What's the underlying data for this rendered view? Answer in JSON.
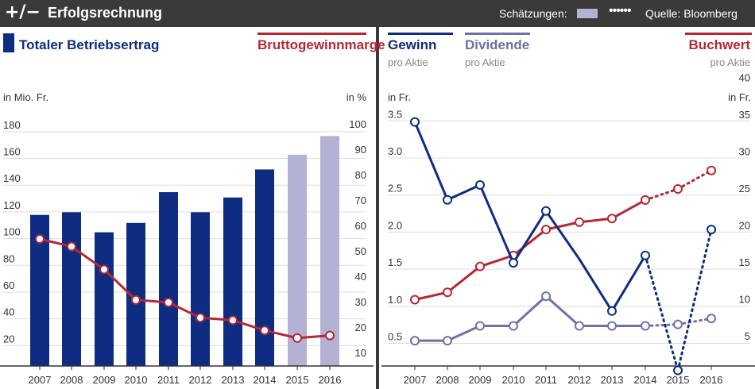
{
  "header": {
    "logo": "+/−",
    "title": "Erfolgsrechnung",
    "estimates_label": "Schätzungen:",
    "estimates_dots": "••••••",
    "source": "Quelle: Bloomberg"
  },
  "colors": {
    "bar": "#0f2c83",
    "bar_estimate": "#b4b2d4",
    "margin_line": "#b62732",
    "eps_line": "#0f2c83",
    "dividend_line": "#6e71aa",
    "book_line": "#b62732"
  },
  "legend": {
    "revenue": "Totaler Betriebsertrag",
    "margin": "Bruttogewinnmarge",
    "eps": "Gewinn",
    "eps_sub": "pro Aktie",
    "dividend": "Dividende",
    "dividend_sub": "pro Aktie",
    "book": "Buchwert",
    "book_sub": "pro Aktie"
  },
  "chart_data": [
    {
      "type": "bar",
      "title": "Totaler Betriebsertrag / Bruttogewinnmarge",
      "categories": [
        "2007",
        "2008",
        "2009",
        "2010",
        "2011",
        "2012",
        "2013",
        "2014",
        "2015",
        "2016"
      ],
      "ylabel": "in Mio. Fr.",
      "y2label": "in %",
      "ylim": [
        0,
        190
      ],
      "yticks": [
        20,
        40,
        60,
        80,
        100,
        120,
        140,
        160,
        180
      ],
      "y2lim": [
        5,
        105
      ],
      "y2ticks": [
        10,
        20,
        30,
        40,
        50,
        60,
        70,
        80,
        90,
        100
      ],
      "estimate_from_index": 8,
      "series": [
        {
          "name": "Totaler Betriebsertrag",
          "axis": "left",
          "values": [
            113,
            115,
            100,
            107,
            130,
            115,
            126,
            147,
            158,
            172
          ]
        },
        {
          "name": "Bruttogewinnmarge",
          "axis": "right",
          "type": "line",
          "values": [
            55,
            52,
            43,
            31,
            30,
            24,
            23,
            19,
            16,
            17
          ]
        }
      ]
    },
    {
      "type": "line",
      "title": "Gewinn / Dividende / Buchwert pro Aktie",
      "categories": [
        "2007",
        "2008",
        "2009",
        "2010",
        "2011",
        "2012",
        "2013",
        "2014",
        "2015",
        "2016"
      ],
      "ylabel": "in Fr.",
      "y2label": "in Fr.",
      "ylim": [
        0.2,
        3.6
      ],
      "yticks": [
        "0.5",
        "1.0",
        "1.5",
        "2.0",
        "2.5",
        "3.0",
        "3.5"
      ],
      "y2lim": [
        0,
        42.5
      ],
      "y2ticks": [
        5,
        10,
        15,
        20,
        25,
        30,
        35,
        40
      ],
      "estimate_from_index": 7,
      "series": [
        {
          "name": "Gewinn pro Aktie",
          "axis": "left",
          "values": [
            3.4,
            2.35,
            2.55,
            1.5,
            2.2,
            null,
            0.85,
            1.6,
            0.05,
            1.95
          ]
        },
        {
          "name": "Dividende pro Aktie",
          "axis": "left",
          "values": [
            0.45,
            0.45,
            0.65,
            0.65,
            1.05,
            0.65,
            0.65,
            0.65,
            0.67,
            0.75
          ]
        },
        {
          "name": "Buchwert pro Aktie",
          "axis": "right",
          "values": [
            10,
            11,
            14.5,
            16,
            19.5,
            20.5,
            21,
            23.5,
            25,
            27.5
          ]
        }
      ]
    }
  ]
}
